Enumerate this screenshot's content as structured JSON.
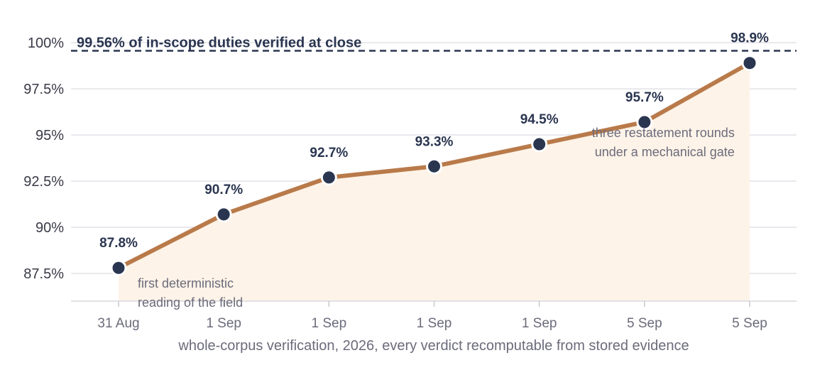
{
  "chart_data": {
    "type": "line",
    "x": [
      "31 Aug",
      "1 Sep",
      "1 Sep",
      "1 Sep",
      "1 Sep",
      "5 Sep",
      "5 Sep"
    ],
    "values": [
      87.8,
      90.7,
      92.7,
      93.3,
      94.5,
      95.7,
      98.9
    ],
    "data_labels": [
      "87.8%",
      "90.7%",
      "92.7%",
      "93.3%",
      "94.5%",
      "95.7%",
      "98.9%"
    ],
    "title": "",
    "xlabel": "whole-corpus verification, 2026, every verdict recomputable from stored evidence",
    "ylabel": "",
    "ylim": [
      86.0,
      100.6
    ],
    "yticks": [
      87.5,
      90,
      92.5,
      95,
      97.5,
      100
    ],
    "ytick_labels": [
      "87.5%",
      "90%",
      "92.5%",
      "95%",
      "97.5%",
      "100%"
    ],
    "grid": true,
    "area_fill": true,
    "reference_line": {
      "value": 99.56,
      "label": "99.56% of in-scope duties verified at close",
      "style": "dashed"
    },
    "annotations": [
      {
        "lines": [
          "first deterministic",
          "reading of the field"
        ],
        "point_index": 0
      },
      {
        "lines": [
          "three restatement rounds",
          "under a mechanical gate"
        ],
        "point_index": 5
      }
    ],
    "colors": {
      "line": "#b97a4a",
      "area": "#fdf3e8",
      "marker": "#2a3550",
      "reference": "#2a3550",
      "grid": "#e2e2e8"
    }
  }
}
